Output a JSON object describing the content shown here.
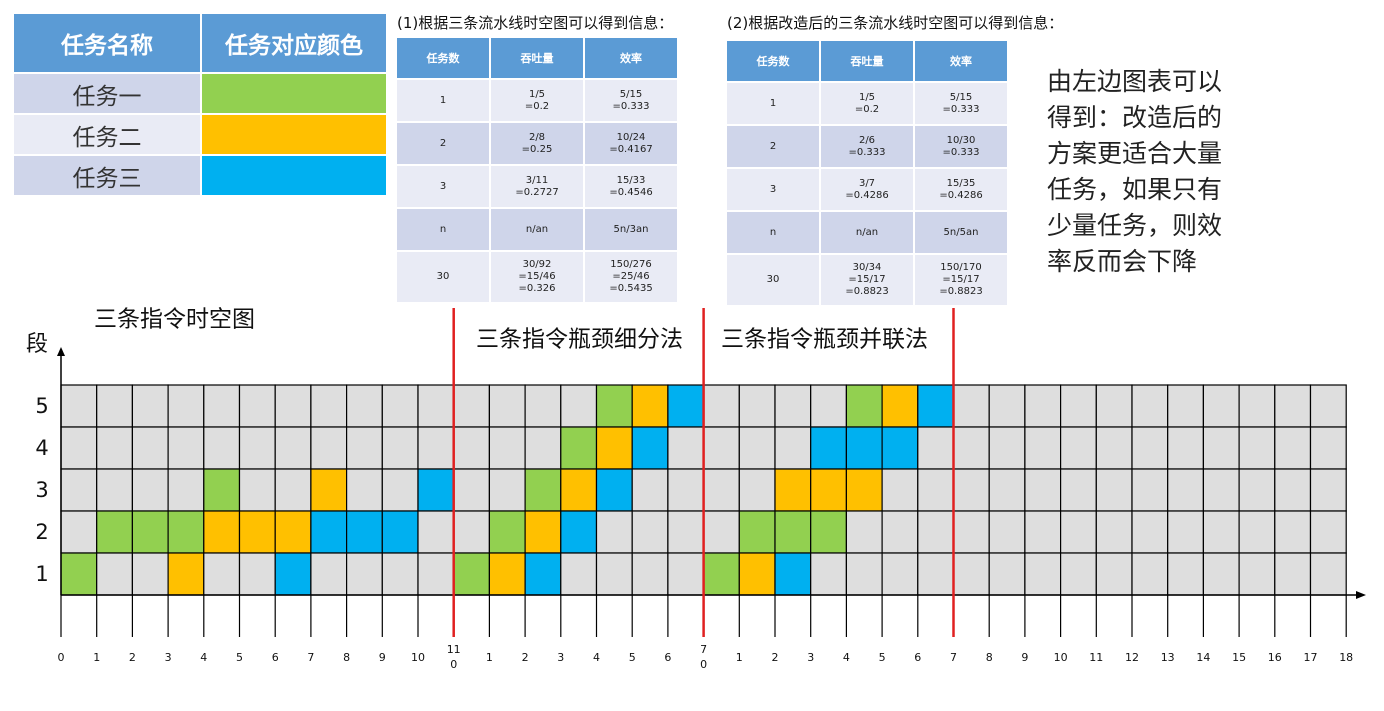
{
  "legend": {
    "headers": [
      "任务名称",
      "任务对应颜色"
    ],
    "rows": [
      {
        "name": "任务一",
        "color": "#92d050"
      },
      {
        "name": "任务二",
        "color": "#ffc000"
      },
      {
        "name": "任务三",
        "color": "#00b0f0"
      }
    ]
  },
  "tables": [
    {
      "title": "(1)根据三条流水线时空图可以得到信息：",
      "headers": [
        "任务数",
        "吞吐量",
        "效率"
      ],
      "rows": [
        [
          "1",
          "1/5\n=0.2",
          "5/15\n=0.333"
        ],
        [
          "2",
          "2/8\n=0.25",
          "10/24\n=0.4167"
        ],
        [
          "3",
          "3/11\n=0.2727",
          "15/33\n=0.4546"
        ],
        [
          "n",
          "n/an",
          "5n/3an"
        ],
        [
          "30",
          "30/92\n=15/46\n=0.326",
          "150/276\n=25/46\n=0.5435"
        ]
      ]
    },
    {
      "title": "(2)根据改造后的三条流水线时空图可以得到信息：",
      "headers": [
        "任务数",
        "吞吐量",
        "效率"
      ],
      "rows": [
        [
          "1",
          "1/5\n=0.2",
          "5/15\n=0.333"
        ],
        [
          "2",
          "2/6\n=0.333",
          "10/30\n=0.333"
        ],
        [
          "3",
          "3/7\n=0.4286",
          "15/35\n=0.4286"
        ],
        [
          "n",
          "n/an",
          "5n/5an"
        ],
        [
          "30",
          "30/34\n=15/17\n=0.8823",
          "150/170\n=15/17\n=0.8823"
        ]
      ]
    }
  ],
  "conclusion": "由左边图表可以得到：改造后的方案更适合大量任务，如果只有少量任务，则效率反而会下降",
  "timeline": {
    "y_label": "段",
    "section_titles": [
      "三条指令时空图",
      "三条指令瓶颈细分法",
      "三条指令瓶颈并联法"
    ],
    "stages": [
      {
        "label": "5",
        "cells": [
          null,
          null,
          null,
          null,
          null,
          null,
          null,
          null,
          null,
          null,
          null,
          null,
          null,
          null,
          null,
          0,
          1,
          2,
          null,
          null,
          null,
          null,
          0,
          1,
          2,
          null,
          null,
          null,
          null,
          null,
          null,
          null,
          null,
          null,
          null,
          null
        ]
      },
      {
        "label": "4",
        "cells": [
          null,
          null,
          null,
          null,
          null,
          null,
          null,
          null,
          null,
          null,
          null,
          null,
          null,
          null,
          0,
          1,
          2,
          null,
          null,
          null,
          null,
          2,
          2,
          2,
          null,
          null,
          null,
          null,
          null,
          null,
          null,
          null,
          null,
          null,
          null,
          null
        ]
      },
      {
        "label": "3",
        "cells": [
          null,
          null,
          null,
          null,
          0,
          null,
          null,
          1,
          null,
          null,
          2,
          null,
          null,
          0,
          1,
          2,
          null,
          null,
          null,
          null,
          1,
          1,
          1,
          null,
          null,
          null,
          null,
          null,
          null,
          null,
          null,
          null,
          null,
          null,
          null,
          null
        ]
      },
      {
        "label": "2",
        "cells": [
          null,
          0,
          0,
          0,
          1,
          1,
          1,
          2,
          2,
          2,
          null,
          null,
          0,
          1,
          2,
          null,
          null,
          null,
          null,
          0,
          0,
          0,
          null,
          null,
          null,
          null,
          null,
          null,
          null,
          null,
          null,
          null,
          null,
          null,
          null,
          null
        ]
      },
      {
        "label": "1",
        "cells": [
          0,
          null,
          null,
          1,
          null,
          null,
          2,
          null,
          null,
          null,
          null,
          0,
          1,
          2,
          null,
          null,
          null,
          null,
          0,
          1,
          2,
          null,
          null,
          null,
          null,
          null,
          null,
          null,
          null,
          null,
          null,
          null,
          null,
          null,
          null,
          null
        ]
      }
    ],
    "x_labels": [
      "0",
      "1",
      "2",
      "3",
      "4",
      "5",
      "6",
      "7",
      "8",
      "9",
      "10",
      [
        "11",
        "0"
      ],
      "1",
      "2",
      "3",
      "4",
      "5",
      "6",
      [
        "7",
        "0"
      ],
      "1",
      "2",
      "3",
      "4",
      "5",
      "6",
      "7",
      "8",
      "9",
      "10",
      "11",
      "12",
      "13",
      "14",
      "15",
      "16",
      "17",
      "18"
    ]
  }
}
